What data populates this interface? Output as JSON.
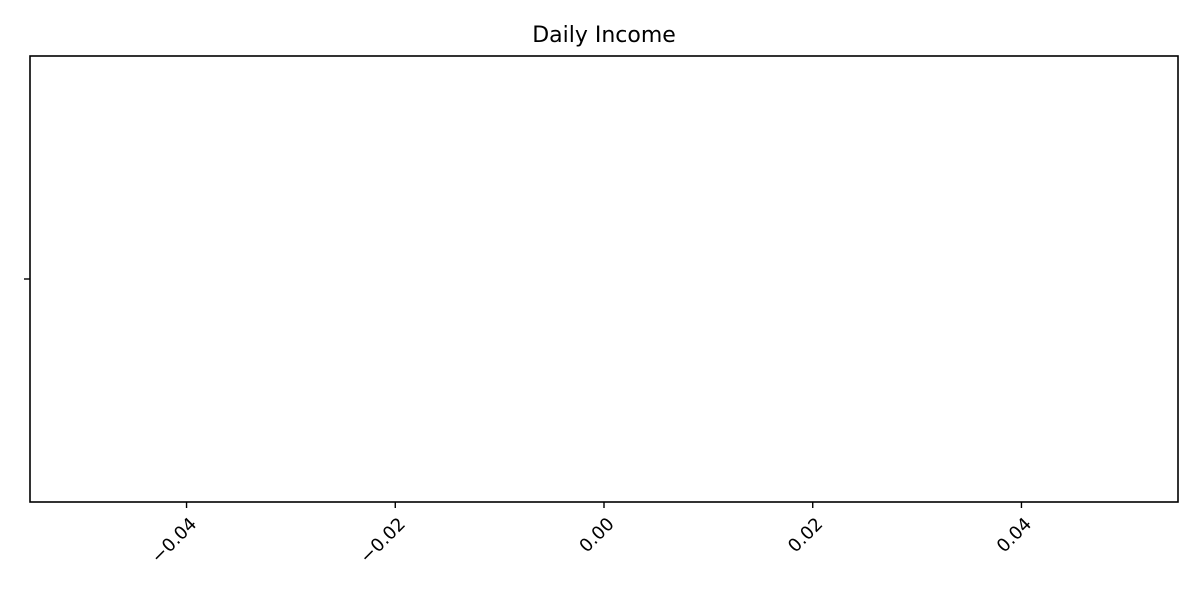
{
  "chart_data": {
    "type": "line",
    "title": "Daily Income",
    "xlabel": "",
    "ylabel": "",
    "x_ticks": [
      "−0.04",
      "−0.02",
      "0.00",
      "0.02",
      "0.04"
    ],
    "x_tick_values": [
      -0.04,
      -0.02,
      0.0,
      0.02,
      0.04
    ],
    "xlim": [
      -0.055,
      0.055
    ],
    "y_ticks": [
      ""
    ],
    "y_tick_values": [
      0
    ],
    "ylim": [
      -0.055,
      0.055
    ],
    "series": [],
    "grid": false,
    "legend": "none",
    "colors": {
      "axes": "#000000",
      "background": "#ffffff"
    }
  }
}
